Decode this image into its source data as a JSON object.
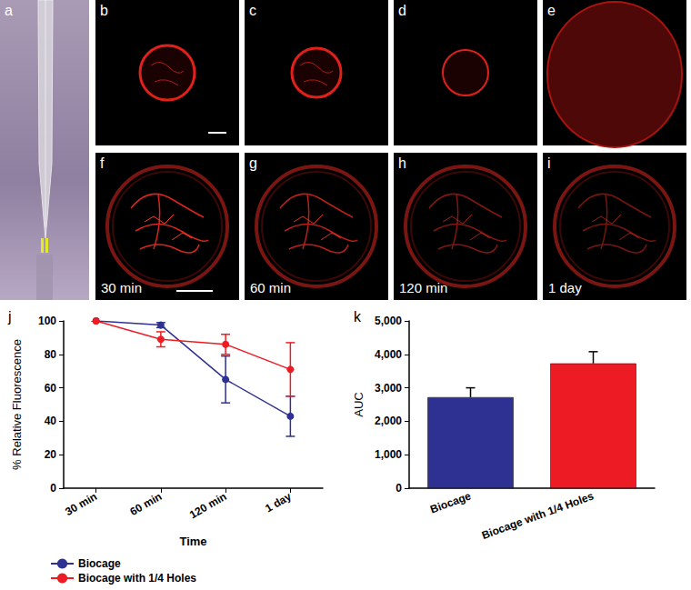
{
  "panels": [
    {
      "label": "a"
    },
    {
      "label": "b"
    },
    {
      "label": "c"
    },
    {
      "label": "d"
    },
    {
      "label": "e"
    },
    {
      "label": "f",
      "time": "30 min"
    },
    {
      "label": "g",
      "time": "60 min"
    },
    {
      "label": "h",
      "time": "120 min"
    },
    {
      "label": "i",
      "time": "1 day"
    }
  ],
  "chart_data": [
    {
      "type": "line",
      "title": "j",
      "x_label": "Time",
      "y_label": "% Relative Fluorescence",
      "categories": [
        "30 min",
        "60 min",
        "120 min",
        "1 day"
      ],
      "series": [
        {
          "name": "Biocage",
          "color": "#2e3192",
          "marker": "circle",
          "values": [
            100,
            97.5,
            65,
            43
          ],
          "errors": [
            0,
            1.5,
            14,
            12
          ]
        },
        {
          "name": "Biocage with 1/4 Holes",
          "color": "#ed1c24",
          "marker": "circle",
          "values": [
            100,
            89,
            86,
            71
          ],
          "errors": [
            0,
            4.5,
            6,
            16
          ]
        }
      ],
      "ylim": [
        0,
        100
      ],
      "yticks": [
        0,
        20,
        40,
        60,
        80,
        100
      ],
      "legend": "bottom-left",
      "grid": false
    },
    {
      "type": "bar",
      "title": "k",
      "y_label": "AUC",
      "categories": [
        "Biocage",
        "Biocage with 1/4 Holes"
      ],
      "values": [
        2720,
        3730
      ],
      "errors": [
        280,
        350
      ],
      "colors": [
        "#2e3192",
        "#ed1c24"
      ],
      "ylim": [
        0,
        5000
      ],
      "yticks": [
        0,
        1000,
        2000,
        3000,
        4000,
        5000
      ],
      "grid": false
    }
  ]
}
